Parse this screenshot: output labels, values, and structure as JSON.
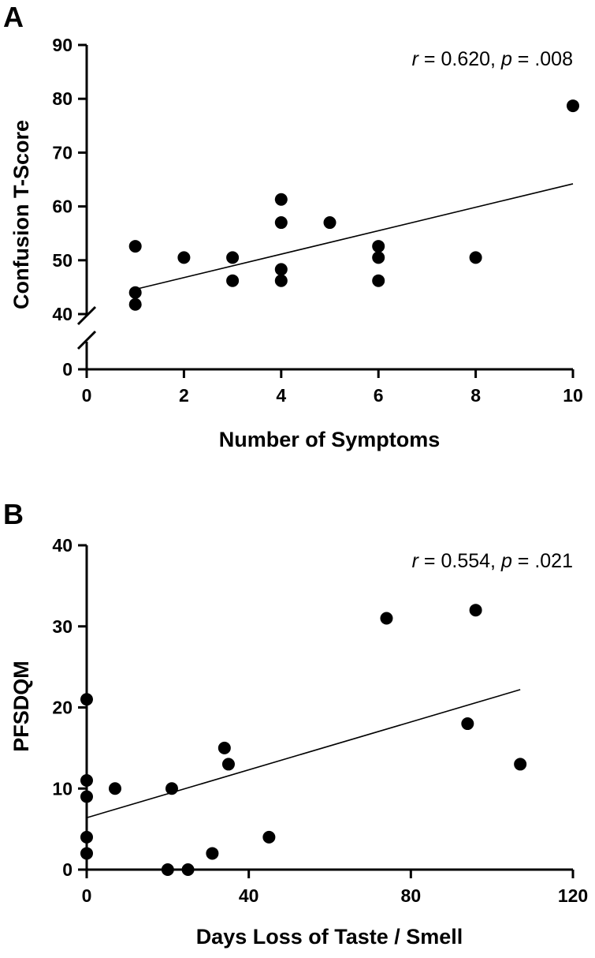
{
  "chart_data": [
    {
      "type": "scatter",
      "panel": "A",
      "xlabel": "Number of Symptoms",
      "ylabel": "Confusion T-Score",
      "annotation": {
        "r_label": "r",
        "r_value": " = 0.620, ",
        "p_label": "p",
        "p_value": " = .008"
      },
      "xlim": [
        0,
        10
      ],
      "ylim": [
        0,
        90
      ],
      "y_axis_break": [
        0,
        40
      ],
      "x_ticks": [
        0,
        2,
        4,
        6,
        8,
        10
      ],
      "y_ticks": [
        0,
        40,
        50,
        60,
        70,
        80,
        90
      ],
      "points": [
        {
          "x": 1,
          "y": 52.6
        },
        {
          "x": 1,
          "y": 44.0
        },
        {
          "x": 1,
          "y": 41.8
        },
        {
          "x": 2,
          "y": 50.5
        },
        {
          "x": 3,
          "y": 50.5
        },
        {
          "x": 3,
          "y": 46.2
        },
        {
          "x": 4,
          "y": 61.3
        },
        {
          "x": 4,
          "y": 57.0
        },
        {
          "x": 4,
          "y": 48.3
        },
        {
          "x": 4,
          "y": 46.2
        },
        {
          "x": 5,
          "y": 57.0
        },
        {
          "x": 6,
          "y": 52.6
        },
        {
          "x": 6,
          "y": 50.5
        },
        {
          "x": 6,
          "y": 46.2
        },
        {
          "x": 8,
          "y": 50.5
        },
        {
          "x": 10,
          "y": 78.7
        }
      ],
      "fit_line": {
        "x": [
          1,
          10
        ],
        "y": [
          44.6,
          64.2
        ]
      }
    },
    {
      "type": "scatter",
      "panel": "B",
      "xlabel": "Days Loss of Taste / Smell",
      "ylabel": "PFSDQM",
      "annotation": {
        "r_label": "r",
        "r_value": " = 0.554, ",
        "p_label": "p",
        "p_value": " = .021"
      },
      "xlim": [
        0,
        120
      ],
      "ylim": [
        0,
        40
      ],
      "x_ticks": [
        0,
        40,
        80,
        120
      ],
      "y_ticks": [
        0,
        10,
        20,
        30,
        40
      ],
      "points": [
        {
          "x": 0,
          "y": 21
        },
        {
          "x": 0,
          "y": 11
        },
        {
          "x": 0,
          "y": 9
        },
        {
          "x": 0,
          "y": 4
        },
        {
          "x": 0,
          "y": 2
        },
        {
          "x": 7,
          "y": 10
        },
        {
          "x": 20,
          "y": 0
        },
        {
          "x": 21,
          "y": 10
        },
        {
          "x": 25,
          "y": 0
        },
        {
          "x": 31,
          "y": 2
        },
        {
          "x": 34,
          "y": 15
        },
        {
          "x": 35,
          "y": 13
        },
        {
          "x": 45,
          "y": 4
        },
        {
          "x": 74,
          "y": 31
        },
        {
          "x": 94,
          "y": 18
        },
        {
          "x": 96,
          "y": 32
        },
        {
          "x": 107,
          "y": 13
        }
      ],
      "fit_line": {
        "x": [
          0,
          107
        ],
        "y": [
          6.4,
          22.2
        ]
      }
    }
  ]
}
